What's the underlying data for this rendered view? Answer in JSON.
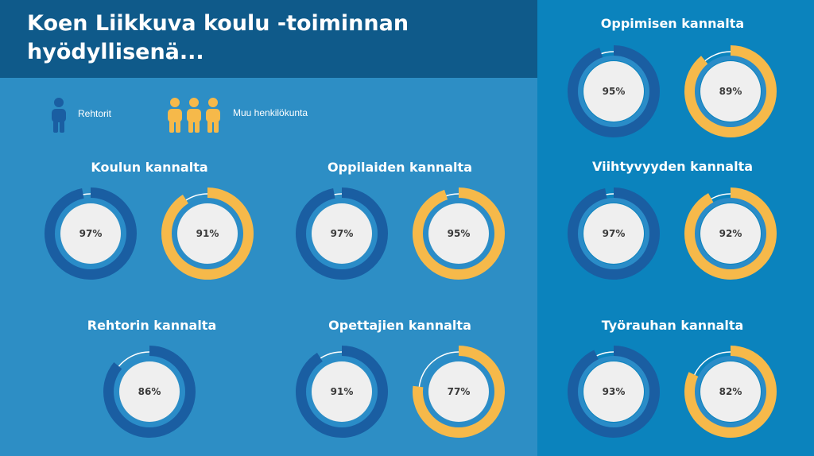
{
  "title": "Koen Liikkuva koulu -toiminnan hyödyllisenä...",
  "legend": {
    "principals_label": "Rehtorit",
    "staff_label": "Muu henkilökunta",
    "principals_icon": "person-icon",
    "staff_icon": "people-group-icon"
  },
  "colors": {
    "title_bg": "#0f5a8a",
    "left_bg": "#2d8ec5",
    "right_bg": "#0b83bd",
    "principals": "#1a5ea2",
    "staff": "#f6b94a",
    "center": "#efefef",
    "remainder": "#ffffff"
  },
  "chart_data": [
    {
      "type": "pie",
      "title": "Koulun kannalta",
      "series": [
        {
          "name": "Rehtorit",
          "values": [
            97
          ],
          "labels": [
            "97%"
          ]
        },
        {
          "name": "Muu henkilökunta",
          "values": [
            91
          ],
          "labels": [
            "91%"
          ]
        }
      ]
    },
    {
      "type": "pie",
      "title": "Oppilaiden kannalta",
      "series": [
        {
          "name": "Rehtorit",
          "values": [
            97
          ],
          "labels": [
            "97%"
          ]
        },
        {
          "name": "Muu henkilökunta",
          "values": [
            95
          ],
          "labels": [
            "95%"
          ]
        }
      ]
    },
    {
      "type": "pie",
      "title": "Rehtorin kannalta",
      "series": [
        {
          "name": "Rehtorit",
          "values": [
            86
          ],
          "labels": [
            "86%"
          ]
        }
      ]
    },
    {
      "type": "pie",
      "title": "Opettajien kannalta",
      "series": [
        {
          "name": "Rehtorit",
          "values": [
            91
          ],
          "labels": [
            "91%"
          ]
        },
        {
          "name": "Muu henkilökunta",
          "values": [
            77
          ],
          "labels": [
            "77%"
          ]
        }
      ]
    },
    {
      "type": "pie",
      "title": "Oppimisen kannalta",
      "series": [
        {
          "name": "Rehtorit",
          "values": [
            95
          ],
          "labels": [
            "95%"
          ]
        },
        {
          "name": "Muu henkilökunta",
          "values": [
            89
          ],
          "labels": [
            "89%"
          ]
        }
      ]
    },
    {
      "type": "pie",
      "title": "Viihtyvyyden kannalta",
      "series": [
        {
          "name": "Rehtorit",
          "values": [
            97
          ],
          "labels": [
            "97%"
          ]
        },
        {
          "name": "Muu henkilökunta",
          "values": [
            92
          ],
          "labels": [
            "92%"
          ]
        }
      ]
    },
    {
      "type": "pie",
      "title": "Työrauhan kannalta",
      "series": [
        {
          "name": "Rehtorit",
          "values": [
            93
          ],
          "labels": [
            "93%"
          ]
        },
        {
          "name": "Muu henkilökunta",
          "values": [
            82
          ],
          "labels": [
            "82%"
          ]
        }
      ]
    }
  ]
}
